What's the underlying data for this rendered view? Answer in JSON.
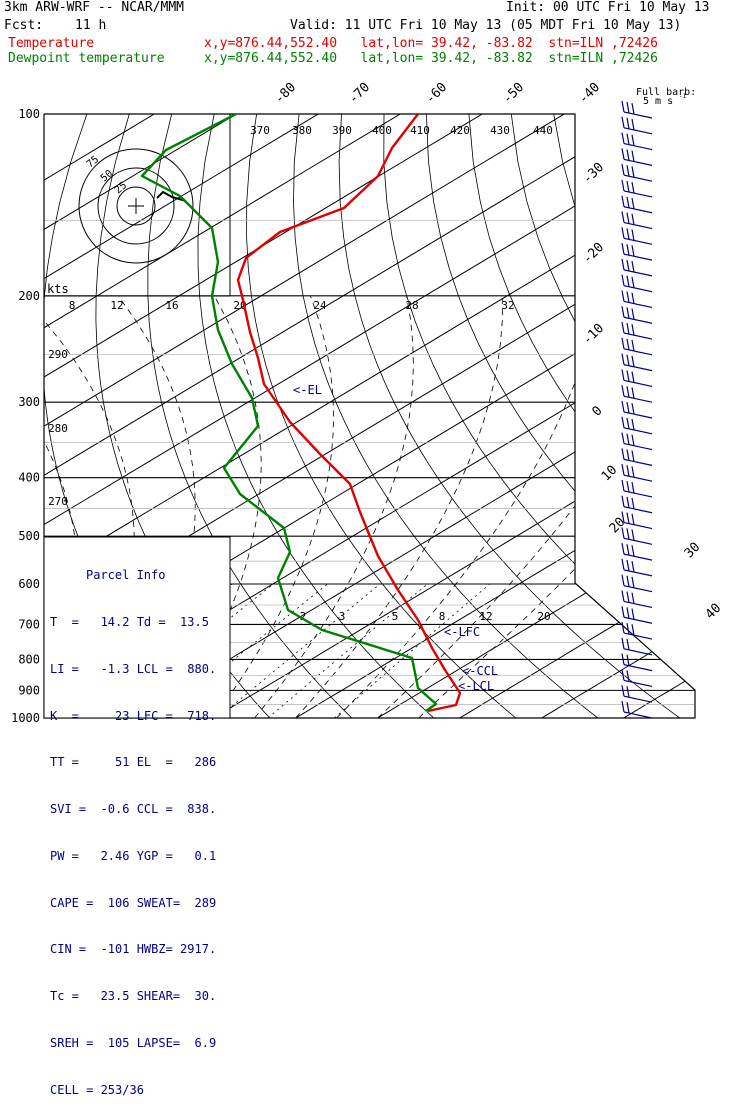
{
  "header": {
    "model": "3km ARW-WRF -- NCAR/MMM",
    "init": "Init: 00 UTC Fri 10 May 13",
    "fcst_label": "Fcst:",
    "fcst_value": "11 h",
    "valid": "Valid: 11 UTC Fri 10 May 13 (05 MDT Fri 10 May 13)",
    "temp_label": "Temperature",
    "dew_label": "Dewpoint temperature",
    "loc_line": "x,y=876.44,552.40   lat,lon= 39.42, -83.82  stn=ILN ,72426",
    "colors": {
      "temperature": "#e00000",
      "dewpoint": "#008000",
      "parcel": "#00008b",
      "wind": "#00008b"
    }
  },
  "parcel_info": {
    "title": "Parcel Info",
    "rows": [
      "T  =   14.2 Td =  13.5",
      "LI =   -1.3 LCL =  880.",
      "K  =     23 LFC =  718.",
      "TT =     51 EL  =   286",
      "SVI =  -0.6 CCL =  838.",
      "PW =   2.46 YGP =   0.1",
      "CAPE =  106 SWEAT=  289",
      "CIN =  -101 HWBZ= 2917.",
      "Tc =   23.5 SHEAR=  30.",
      "SREH =  105 LAPSE=  6.9",
      "CELL = 253/36"
    ]
  },
  "wind_key": {
    "label1": "Full barb:",
    "label2": "5 m s",
    "unit_sup": "-1"
  },
  "hodograph": {
    "unit": "kts",
    "rings": [
      "25",
      "50",
      "75"
    ]
  },
  "annotations": {
    "el": "<-EL",
    "lfc": "<-LFC",
    "ccl": "<-CCL",
    "lcl": "<-LCL"
  },
  "chart_data": {
    "type": "line",
    "title": "",
    "pressure_ticks": [
      "100",
      "200",
      "300",
      "400",
      "500",
      "600",
      "700",
      "800",
      "900",
      "1000"
    ],
    "pressure_levels": [
      100,
      200,
      300,
      400,
      500,
      600,
      700,
      800,
      900,
      1000
    ],
    "isotherm_labels": [
      "-80",
      "-70",
      "-60",
      "-50",
      "-40",
      "-30",
      "-20",
      "-10",
      "0",
      "10",
      "20",
      "30",
      "40"
    ],
    "theta_labels": [
      "370",
      "380",
      "390",
      "400",
      "410",
      "420",
      "430",
      "440",
      "290",
      "280",
      "270"
    ],
    "mixing_ratio_labels": [
      "8",
      "12",
      "16",
      "20",
      "24",
      "28",
      "32",
      "2",
      "3",
      "5",
      "8",
      "12",
      "20"
    ],
    "y_scale": "log",
    "series": [
      {
        "name": "Temperature",
        "p": [
          100,
          150,
          200,
          250,
          300,
          350,
          400,
          450,
          500,
          550,
          600,
          650,
          700,
          750,
          800,
          850,
          900,
          950,
          1000
        ],
        "t": [
          -52,
          -48,
          -54,
          -44,
          -37,
          -28,
          -20,
          -14,
          -8,
          -4,
          -1,
          2,
          5,
          8,
          10,
          12,
          16,
          18,
          14
        ]
      },
      {
        "name": "Dewpoint temperature",
        "p": [
          100,
          150,
          200,
          250,
          300,
          350,
          400,
          450,
          500,
          550,
          600,
          650,
          700,
          750,
          800,
          850,
          900,
          950,
          1000
        ],
        "t": [
          -60,
          -66,
          -64,
          -58,
          -50,
          -45,
          -38,
          -28,
          -22,
          -18,
          -15,
          -10,
          -5,
          2,
          10,
          12,
          12,
          13,
          13
        ]
      }
    ],
    "wind_levels": 39
  }
}
